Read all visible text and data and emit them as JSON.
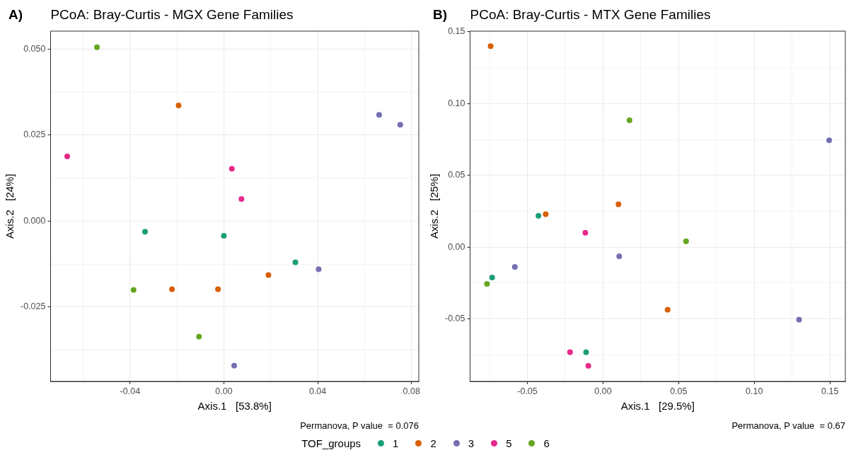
{
  "chart_data": [
    {
      "type": "scatter",
      "title": "PCoA: Bray-Curtis - MGX Gene Families",
      "xlabel": "Axis.1   [53.8%]",
      "ylabel": "Axis.2   [24%]",
      "legend_title": "TOF_groups",
      "legend": "bottom",
      "grid": true,
      "marker": "circle",
      "annotations": [
        "A)",
        "Permanova, P value  = 0.076"
      ],
      "xlim": [
        -0.0739,
        0.0831
      ],
      "ylim": [
        -0.0466,
        0.0552
      ],
      "xticks": [
        {
          "value": -0.06,
          "label": null
        },
        {
          "value": -0.04,
          "label": "-0.04"
        },
        {
          "value": -0.02,
          "label": null
        },
        {
          "value": 0,
          "label": "0.00"
        },
        {
          "value": 0.02,
          "label": null
        },
        {
          "value": 0.04,
          "label": "0.04"
        },
        {
          "value": 0.06,
          "label": null
        },
        {
          "value": 0.08,
          "label": "0.08"
        }
      ],
      "yticks": [
        {
          "value": -0.0375,
          "label": null
        },
        {
          "value": -0.025,
          "label": "-0.025"
        },
        {
          "value": -0.0125,
          "label": null
        },
        {
          "value": 0,
          "label": "0.000"
        },
        {
          "value": 0.0125,
          "label": null
        },
        {
          "value": 0.025,
          "label": "0.025"
        },
        {
          "value": 0.0375,
          "label": null
        },
        {
          "value": 0.05,
          "label": "0.050"
        }
      ],
      "series": [
        {
          "name": "1",
          "color": "#1b9e77",
          "x": [
            -0.0336,
            0.0,
            0.0305
          ],
          "values": [
            -0.0031,
            -0.0043,
            -0.012
          ]
        },
        {
          "name": "2",
          "color": "#d95f02",
          "x": [
            -0.0193,
            0.019,
            -0.0221,
            -0.0025
          ],
          "values": [
            0.0336,
            -0.0157,
            -0.0198,
            -0.0198
          ]
        },
        {
          "name": "3",
          "color": "#7570b3",
          "x": [
            0.0662,
            0.0752,
            0.0404,
            0.0044
          ],
          "values": [
            0.0309,
            0.028,
            -0.014,
            -0.042
          ]
        },
        {
          "name": "5",
          "color": "#e7298a",
          "x": [
            -0.0668,
            0.0034,
            0.0075
          ],
          "values": [
            0.0188,
            0.0152,
            0.0064
          ]
        },
        {
          "name": "6",
          "color": "#66a61e",
          "x": [
            -0.0541,
            -0.0385,
            -0.0106
          ],
          "values": [
            0.0505,
            -0.02,
            -0.0336
          ]
        }
      ]
    },
    {
      "type": "scatter",
      "title": "PCoA: Bray-Curtis - MTX Gene Families",
      "xlabel": "Axis.1   [29.5%]",
      "ylabel": "Axis.2   [25%]",
      "grid": true,
      "marker": "circle",
      "annotations": [
        "B)",
        "Permanova, P value  = 0.67"
      ],
      "xlim": [
        -0.0879,
        0.1602
      ],
      "ylim": [
        -0.0937,
        0.1505
      ],
      "xticks": [
        {
          "value": -0.075,
          "label": null
        },
        {
          "value": -0.05,
          "label": "-0.05"
        },
        {
          "value": -0.025,
          "label": null
        },
        {
          "value": 0,
          "label": "0.00"
        },
        {
          "value": 0.025,
          "label": null
        },
        {
          "value": 0.05,
          "label": "0.05"
        },
        {
          "value": 0.075,
          "label": null
        },
        {
          "value": 0.1,
          "label": "0.10"
        },
        {
          "value": 0.125,
          "label": null
        },
        {
          "value": 0.15,
          "label": "0.15"
        }
      ],
      "yticks": [
        {
          "value": -0.075,
          "label": null
        },
        {
          "value": -0.05,
          "label": "-0.05"
        },
        {
          "value": -0.025,
          "label": null
        },
        {
          "value": 0,
          "label": "0.00"
        },
        {
          "value": 0.025,
          "label": null
        },
        {
          "value": 0.05,
          "label": "0.05"
        },
        {
          "value": 0.075,
          "label": null
        },
        {
          "value": 0.1,
          "label": "0.10"
        },
        {
          "value": 0.125,
          "label": null
        },
        {
          "value": 0.15,
          "label": "0.15"
        }
      ],
      "series": [
        {
          "name": "1",
          "color": "#1b9e77",
          "x": [
            -0.0427,
            -0.0733,
            -0.0112
          ],
          "values": [
            0.0218,
            -0.0213,
            -0.0734
          ]
        },
        {
          "name": "2",
          "color": "#d95f02",
          "x": [
            -0.0743,
            0.0102,
            -0.0379,
            0.0427
          ],
          "values": [
            0.14,
            0.0298,
            0.0228,
            -0.0437
          ]
        },
        {
          "name": "3",
          "color": "#7570b3",
          "x": [
            0.1495,
            0.0107,
            -0.0583,
            0.1296
          ],
          "values": [
            0.0744,
            -0.0065,
            -0.0139,
            -0.0506
          ]
        },
        {
          "name": "5",
          "color": "#e7298a",
          "x": [
            -0.0117,
            -0.0218,
            -0.0097
          ],
          "values": [
            0.0099,
            -0.0734,
            -0.0829
          ]
        },
        {
          "name": "6",
          "color": "#66a61e",
          "x": [
            0.0175,
            0.0549,
            -0.0767
          ],
          "values": [
            0.0883,
            0.004,
            -0.0258
          ]
        }
      ]
    }
  ]
}
